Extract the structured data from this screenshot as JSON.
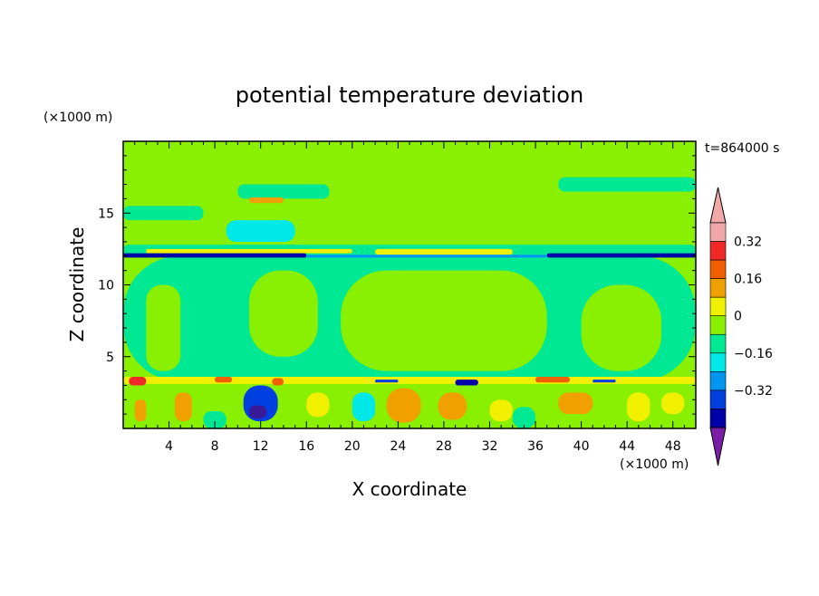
{
  "chart_data": {
    "type": "heatmap",
    "title": "potential temperature deviation",
    "xlabel": "X coordinate",
    "ylabel": "Z coordinate",
    "x_unit": "(×1000 m)",
    "y_unit": "(×1000 m)",
    "time_label": "t=864000 s",
    "xlim": [
      0,
      50
    ],
    "ylim": [
      0,
      20
    ],
    "x_ticks": [
      "4",
      "8",
      "12",
      "16",
      "20",
      "24",
      "28",
      "32",
      "36",
      "40",
      "44",
      "48"
    ],
    "y_ticks": [
      "5",
      "10",
      "15"
    ],
    "colorbar_labels": [
      "0.32",
      "0.16",
      "0",
      "−0.16",
      "−0.32"
    ],
    "levels": [
      -0.48,
      -0.4,
      -0.32,
      -0.24,
      -0.16,
      -0.08,
      0,
      0.08,
      0.16,
      0.24,
      0.32,
      0.4,
      0.48
    ],
    "colors": {
      "below": "#7a1ea8",
      "bands": [
        "#3a1a96",
        "#0000a8",
        "#0040e0",
        "#0096f0",
        "#00e8e8",
        "#00e893",
        "#88f000",
        "#f0f000",
        "#f0a000",
        "#f06000",
        "#f02828",
        "#f0a8a8"
      ],
      "above": "#f0a8a8",
      "frame": "#000000"
    },
    "field": {
      "background": 0.04,
      "regions": [
        {
          "x": [
            0,
            50
          ],
          "y": [
            0,
            3.3
          ],
          "v": 0.02
        },
        {
          "x": [
            0,
            50
          ],
          "y": [
            3.3,
            12
          ],
          "v": -0.03
        },
        {
          "x": [
            2,
            5
          ],
          "y": [
            4,
            10
          ],
          "v": 0.02
        },
        {
          "x": [
            11,
            17
          ],
          "y": [
            5,
            11
          ],
          "v": 0.02
        },
        {
          "x": [
            19,
            37
          ],
          "y": [
            4,
            11
          ],
          "v": 0.03
        },
        {
          "x": [
            40,
            47
          ],
          "y": [
            4,
            10
          ],
          "v": 0.02
        },
        {
          "x": [
            0,
            50
          ],
          "y": [
            12,
            12.8
          ],
          "v": -0.04
        },
        {
          "x": [
            9,
            15
          ],
          "y": [
            13,
            14.5
          ],
          "v": -0.12
        },
        {
          "x": [
            0,
            7
          ],
          "y": [
            14.5,
            15.5
          ],
          "v": -0.03
        },
        {
          "x": [
            10,
            18
          ],
          "y": [
            16,
            17
          ],
          "v": -0.03
        },
        {
          "x": [
            38,
            50
          ],
          "y": [
            16.5,
            17.5
          ],
          "v": -0.03
        },
        {
          "x": [
            22,
            34
          ],
          "y": [
            12.1,
            12.5
          ],
          "v": 0.12
        },
        {
          "x": [
            2,
            20
          ],
          "y": [
            12.2,
            12.5
          ],
          "v": 0.14
        },
        {
          "x": [
            0,
            16
          ],
          "y": [
            11.9,
            12.2
          ],
          "v": -0.4
        },
        {
          "x": [
            37,
            50
          ],
          "y": [
            11.9,
            12.2
          ],
          "v": -0.4
        },
        {
          "x": [
            16,
            37
          ],
          "y": [
            11.9,
            12.1
          ],
          "v": -0.2
        },
        {
          "x": [
            11,
            14
          ],
          "y": [
            15.7,
            16.1
          ],
          "v": 0.18
        },
        {
          "x": [
            0,
            50
          ],
          "y": [
            3.1,
            3.6
          ],
          "v": 0.08
        },
        {
          "x": [
            0.5,
            2
          ],
          "y": [
            3,
            3.6
          ],
          "v": 0.35
        },
        {
          "x": [
            8,
            9.5
          ],
          "y": [
            3.2,
            3.6
          ],
          "v": 0.3
        },
        {
          "x": [
            13,
            14
          ],
          "y": [
            3,
            3.5
          ],
          "v": 0.3
        },
        {
          "x": [
            22,
            24
          ],
          "y": [
            3.2,
            3.4
          ],
          "v": -0.3
        },
        {
          "x": [
            29,
            31
          ],
          "y": [
            3,
            3.4
          ],
          "v": -0.4
        },
        {
          "x": [
            36,
            39
          ],
          "y": [
            3.2,
            3.6
          ],
          "v": 0.3
        },
        {
          "x": [
            41,
            43
          ],
          "y": [
            3.2,
            3.4
          ],
          "v": -0.3
        },
        {
          "x": [
            10.5,
            13.5
          ],
          "y": [
            0.5,
            3
          ],
          "v": -0.32
        },
        {
          "x": [
            11,
            12.5
          ],
          "y": [
            0.7,
            1.6
          ],
          "v": -0.45
        },
        {
          "x": [
            4.5,
            6
          ],
          "y": [
            0.5,
            2.5
          ],
          "v": 0.2
        },
        {
          "x": [
            1,
            2
          ],
          "y": [
            0.5,
            2
          ],
          "v": 0.18
        },
        {
          "x": [
            16,
            18
          ],
          "y": [
            0.8,
            2.5
          ],
          "v": 0.12
        },
        {
          "x": [
            23,
            26
          ],
          "y": [
            0.4,
            2.8
          ],
          "v": 0.18
        },
        {
          "x": [
            27.5,
            30
          ],
          "y": [
            0.6,
            2.5
          ],
          "v": 0.2
        },
        {
          "x": [
            32,
            34
          ],
          "y": [
            0.5,
            2
          ],
          "v": 0.12
        },
        {
          "x": [
            38,
            41
          ],
          "y": [
            1,
            2.5
          ],
          "v": 0.2
        },
        {
          "x": [
            44,
            46
          ],
          "y": [
            0.5,
            2.5
          ],
          "v": 0.14
        },
        {
          "x": [
            47,
            49
          ],
          "y": [
            1,
            2.5
          ],
          "v": 0.12
        },
        {
          "x": [
            20,
            22
          ],
          "y": [
            0.5,
            2.5
          ],
          "v": -0.1
        },
        {
          "x": [
            34,
            36
          ],
          "y": [
            0,
            1.5
          ],
          "v": -0.08
        },
        {
          "x": [
            7,
            9
          ],
          "y": [
            0,
            1.2
          ],
          "v": -0.06
        }
      ]
    }
  }
}
